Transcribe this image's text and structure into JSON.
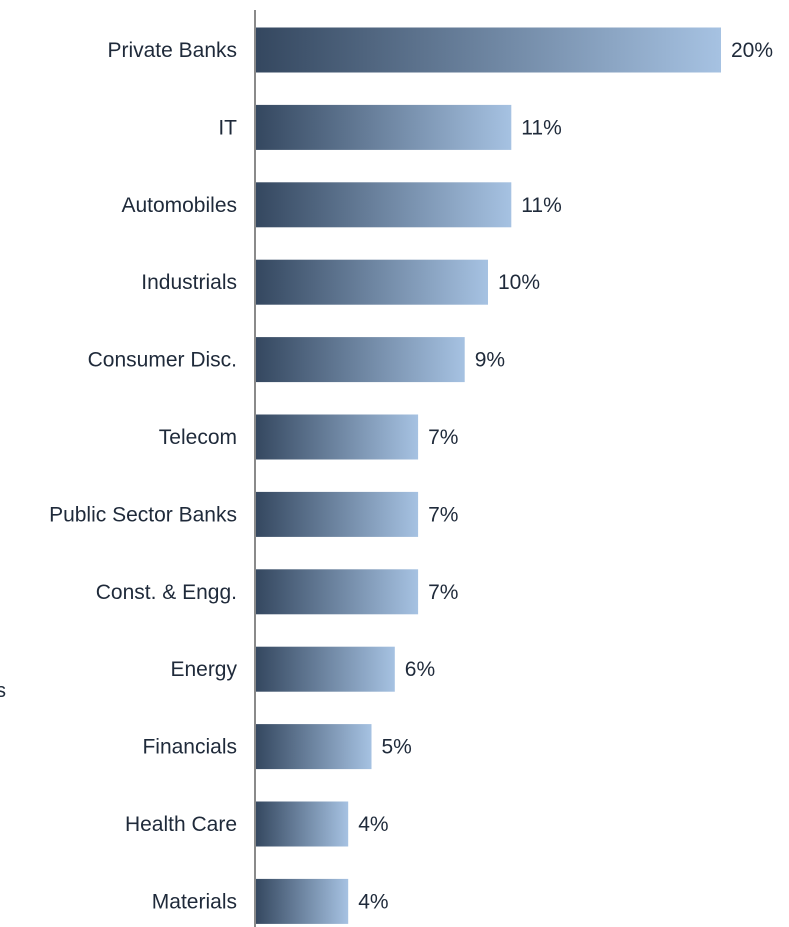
{
  "colors": {
    "bar_start": "#34475f",
    "bar_end": "#a6c2e2",
    "axis": "#8a8a8a",
    "text": "#1f2a3a"
  },
  "stray_text": "s",
  "chart_data": {
    "type": "bar",
    "orientation": "horizontal",
    "categories": [
      "Private Banks",
      "IT",
      "Automobiles",
      "Industrials",
      "Consumer Disc.",
      "Telecom",
      "Public Sector Banks",
      "Const. & Engg.",
      "Energy",
      "Financials",
      "Health Care",
      "Materials"
    ],
    "values": [
      20,
      11,
      11,
      10,
      9,
      7,
      7,
      7,
      6,
      5,
      4,
      4
    ],
    "value_labels": [
      "20%",
      "11%",
      "11%",
      "10%",
      "9%",
      "7%",
      "7%",
      "7%",
      "6%",
      "5%",
      "4%",
      "4%"
    ],
    "unit": "%",
    "grid": false,
    "legend": "none"
  }
}
